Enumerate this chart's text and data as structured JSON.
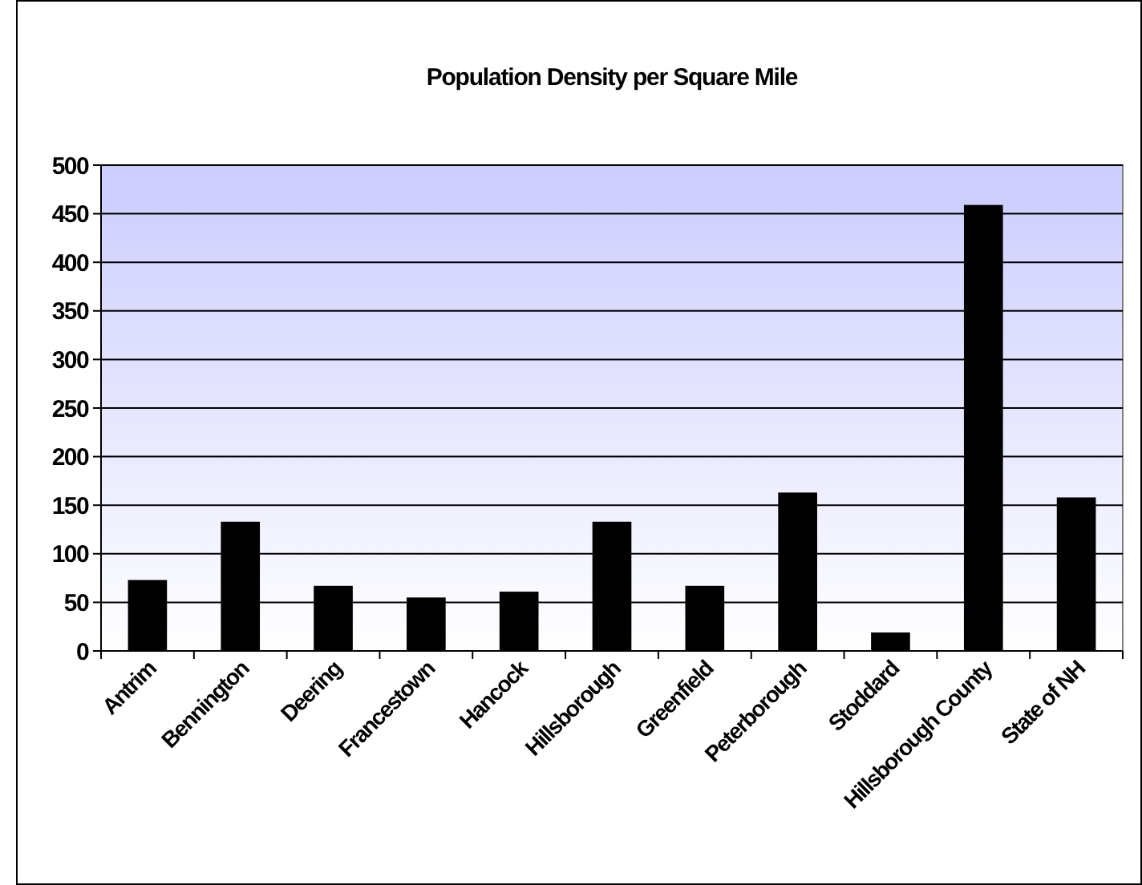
{
  "chart_data": {
    "type": "bar",
    "title": "Population Density per Square Mile",
    "categories": [
      "Antrim",
      "Bennington",
      "Deering",
      "Francestown",
      "Hancock",
      "Hillsborough",
      "Greenfield",
      "Peterborough",
      "Stoddard",
      "Hillsborough County",
      "State of NH"
    ],
    "values": [
      73,
      133,
      67,
      55,
      61,
      133,
      67,
      163,
      19,
      459,
      158
    ],
    "color": "#000000",
    "ylim": [
      0,
      500
    ],
    "yticks": [
      0,
      50,
      100,
      150,
      200,
      250,
      300,
      350,
      400,
      450,
      500
    ],
    "grid": "y"
  }
}
